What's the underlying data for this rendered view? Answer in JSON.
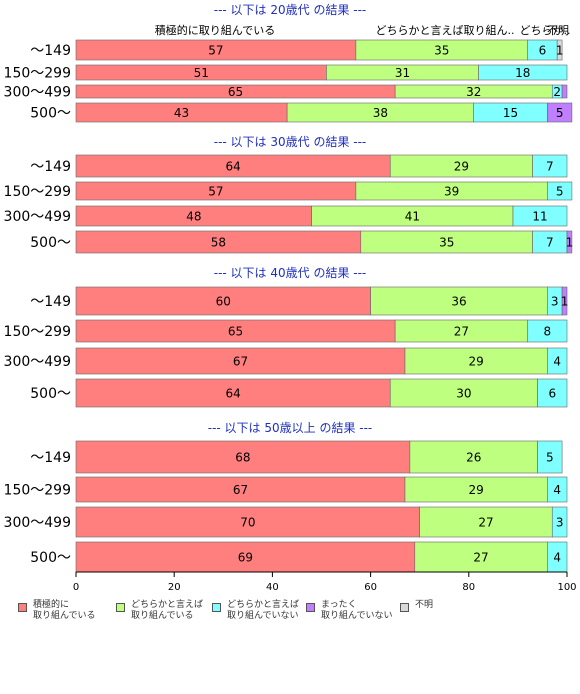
{
  "chart_data": {
    "type": "bar",
    "orientation": "horizontal",
    "stacked": true,
    "xlim": [
      0,
      100
    ],
    "x_ticks": [
      "0",
      "20",
      "40",
      "60",
      "80",
      "100"
    ],
    "top_labels": [
      "積極的に取り組んでいる",
      "どちらかと言えば取り組ん..",
      "どちらか..",
      "不明"
    ],
    "series": [
      {
        "name": "積極的に\n取り組んでいる",
        "color": "#ff7f7f"
      },
      {
        "name": "どちらかと言えば\n取り組んでいる",
        "color": "#bfff7f"
      },
      {
        "name": "どちらかと言えば\n取り組んでいない",
        "color": "#7fffff"
      },
      {
        "name": "まったく\n取り組んでいない",
        "color": "#bf7fff"
      },
      {
        "name": "不明",
        "color": "#d9d9d9"
      }
    ],
    "groups": [
      {
        "title": "--- 以下は 20歳代 の結果 ---",
        "rows": [
          {
            "label": "～149",
            "values": [
              57,
              35,
              6,
              0,
              1
            ],
            "labels": [
              "57",
              "35",
              "6",
              "",
              "1"
            ]
          },
          {
            "label": "150～299",
            "values": [
              51,
              31,
              18,
              0,
              0
            ],
            "labels": [
              "51",
              "31",
              "18",
              "",
              ""
            ]
          },
          {
            "label": "300～499",
            "values": [
              65,
              32,
              2,
              1,
              0
            ],
            "labels": [
              "65",
              "32",
              "2",
              "",
              ""
            ]
          },
          {
            "label": "500～",
            "values": [
              43,
              38,
              15,
              5,
              0
            ],
            "labels": [
              "43",
              "38",
              "15",
              "5",
              ""
            ]
          }
        ]
      },
      {
        "title": "--- 以下は 30歳代 の結果 ---",
        "rows": [
          {
            "label": "～149",
            "values": [
              64,
              29,
              7,
              0,
              0
            ],
            "labels": [
              "64",
              "29",
              "7",
              "",
              ""
            ]
          },
          {
            "label": "150～299",
            "values": [
              57,
              39,
              5,
              0,
              0
            ],
            "labels": [
              "57",
              "39",
              "5",
              "",
              ""
            ]
          },
          {
            "label": "300～499",
            "values": [
              48,
              41,
              11,
              0,
              0
            ],
            "labels": [
              "48",
              "41",
              "11",
              "",
              ""
            ]
          },
          {
            "label": "500～",
            "values": [
              58,
              35,
              7,
              1,
              0
            ],
            "labels": [
              "58",
              "35",
              "7",
              "1",
              ""
            ]
          }
        ]
      },
      {
        "title": "--- 以下は 40歳代 の結果 ---",
        "rows": [
          {
            "label": "～149",
            "values": [
              60,
              36,
              3,
              1,
              0
            ],
            "labels": [
              "60",
              "36",
              "3",
              "1",
              ""
            ]
          },
          {
            "label": "150～299",
            "values": [
              65,
              27,
              8,
              0,
              0
            ],
            "labels": [
              "65",
              "27",
              "8",
              "",
              ""
            ]
          },
          {
            "label": "300～499",
            "values": [
              67,
              29,
              4,
              0,
              0
            ],
            "labels": [
              "67",
              "29",
              "4",
              "",
              ""
            ]
          },
          {
            "label": "500～",
            "values": [
              64,
              30,
              6,
              0,
              0
            ],
            "labels": [
              "64",
              "30",
              "6",
              "",
              ""
            ]
          }
        ]
      },
      {
        "title": "--- 以下は 50歳以上 の結果 ---",
        "rows": [
          {
            "label": "～149",
            "values": [
              68,
              26,
              5,
              0,
              0
            ],
            "labels": [
              "68",
              "26",
              "5",
              "",
              ""
            ]
          },
          {
            "label": "150～299",
            "values": [
              67,
              29,
              4,
              0,
              0
            ],
            "labels": [
              "67",
              "29",
              "4",
              "",
              ""
            ]
          },
          {
            "label": "300～499",
            "values": [
              70,
              27,
              3,
              0,
              0
            ],
            "labels": [
              "70",
              "27",
              "3",
              "",
              ""
            ]
          },
          {
            "label": "500～",
            "values": [
              69,
              27,
              4,
              0,
              0
            ],
            "labels": [
              "69",
              "27",
              "4",
              "",
              ""
            ]
          }
        ]
      }
    ]
  }
}
